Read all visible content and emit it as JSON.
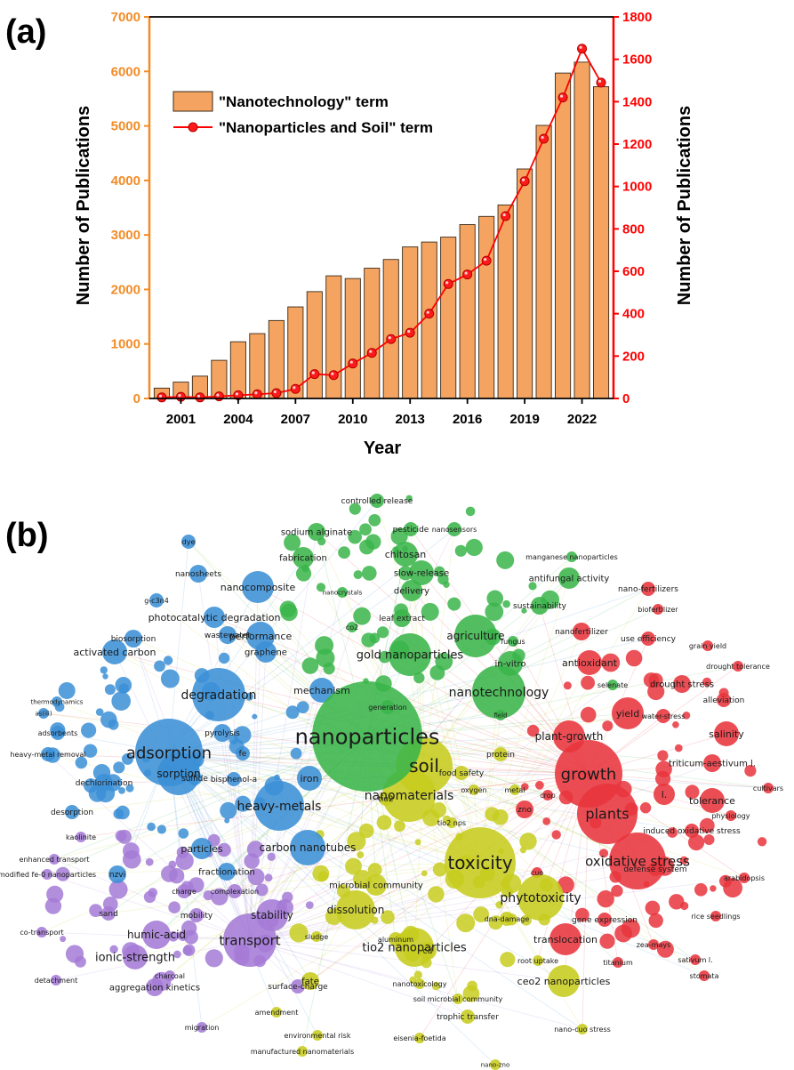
{
  "chart_data": [
    {
      "type": "bar+line",
      "panel_label": "(a)",
      "xlabel": "Year",
      "ylabel_left": "Number of Publications",
      "ylabel_right": "Number of Publications",
      "years": [
        2000,
        2001,
        2002,
        2003,
        2004,
        2005,
        2006,
        2007,
        2008,
        2009,
        2010,
        2011,
        2012,
        2013,
        2014,
        2015,
        2016,
        2017,
        2018,
        2019,
        2020,
        2021,
        2022,
        2023
      ],
      "x_ticks": [
        "2001",
        "2004",
        "2007",
        "2010",
        "2013",
        "2016",
        "2019",
        "2022"
      ],
      "left_axis": {
        "ticks": [
          0,
          1000,
          2000,
          3000,
          4000,
          5000,
          6000,
          7000
        ],
        "ylim": [
          0,
          7000
        ],
        "color": "#f28c28"
      },
      "right_axis": {
        "ticks": [
          0,
          200,
          400,
          600,
          800,
          1000,
          1200,
          1400,
          1600,
          1800
        ],
        "ylim": [
          0,
          1800
        ],
        "color": "#ff0000"
      },
      "series": [
        {
          "name": "\"Nanotechnology\" term",
          "kind": "bar",
          "axis": "left",
          "color": "#f4a460",
          "values": [
            190,
            300,
            410,
            700,
            1040,
            1190,
            1430,
            1680,
            1960,
            2250,
            2200,
            2390,
            2550,
            2780,
            2870,
            2960,
            3190,
            3340,
            3550,
            4210,
            5010,
            5970,
            6170,
            5720
          ]
        },
        {
          "name": "\"Nanoparticles and Soil\" term",
          "kind": "line",
          "axis": "right",
          "color": "#ff0000",
          "values": [
            5,
            8,
            5,
            10,
            15,
            20,
            25,
            45,
            115,
            110,
            165,
            215,
            280,
            310,
            400,
            540,
            585,
            650,
            860,
            1025,
            1225,
            1420,
            1650,
            1490
          ]
        }
      ]
    },
    {
      "type": "network",
      "panel_label": "(b)",
      "clusters": {
        "blue": "#3b8fd6",
        "green": "#3ab54a",
        "red": "#e8343c",
        "yellow": "#c7cc1e",
        "purple": "#a57bd6"
      },
      "terms": [
        {
          "text": "nanoparticles",
          "cluster": "green"
        },
        {
          "text": "soil",
          "cluster": "yellow"
        },
        {
          "text": "toxicity",
          "cluster": "yellow"
        },
        {
          "text": "nanomaterials",
          "cluster": "yellow"
        },
        {
          "text": "adsorption",
          "cluster": "blue"
        },
        {
          "text": "growth",
          "cluster": "red"
        },
        {
          "text": "plants",
          "cluster": "red"
        },
        {
          "text": "oxidative stress",
          "cluster": "red"
        },
        {
          "text": "transport",
          "cluster": "purple"
        },
        {
          "text": "heavy-metals",
          "cluster": "blue"
        },
        {
          "text": "degradation",
          "cluster": "blue"
        },
        {
          "text": "nanotechnology",
          "cluster": "green"
        },
        {
          "text": "gold nanoparticles",
          "cluster": "green"
        },
        {
          "text": "phytotoxicity",
          "cluster": "yellow"
        },
        {
          "text": "sorption",
          "cluster": "blue"
        },
        {
          "text": "tio2 nanoparticles",
          "cluster": "yellow"
        },
        {
          "text": "carbon nanotubes",
          "cluster": "blue"
        },
        {
          "text": "agriculture",
          "cluster": "green"
        },
        {
          "text": "plant-growth",
          "cluster": "red"
        },
        {
          "text": "dissolution",
          "cluster": "yellow"
        },
        {
          "text": "stability",
          "cluster": "purple"
        },
        {
          "text": "humic-acid",
          "cluster": "purple"
        },
        {
          "text": "ionic-strength",
          "cluster": "purple"
        },
        {
          "text": "ceo2 nanoparticles",
          "cluster": "yellow"
        },
        {
          "text": "translocation",
          "cluster": "red"
        },
        {
          "text": "yield",
          "cluster": "red"
        },
        {
          "text": "tolerance",
          "cluster": "red"
        },
        {
          "text": "salinity",
          "cluster": "red"
        },
        {
          "text": "l.",
          "cluster": "red"
        },
        {
          "text": "performance",
          "cluster": "blue"
        },
        {
          "text": "nanocomposite",
          "cluster": "blue"
        },
        {
          "text": "chitosan",
          "cluster": "green"
        },
        {
          "text": "fabrication",
          "cluster": "green"
        },
        {
          "text": "slow-release",
          "cluster": "green"
        },
        {
          "text": "delivery",
          "cluster": "green"
        },
        {
          "text": "sodium alginate",
          "cluster": "green"
        },
        {
          "text": "pesticide",
          "cluster": "green"
        },
        {
          "text": "nanosensors",
          "cluster": "green"
        },
        {
          "text": "controlled release",
          "cluster": "green"
        },
        {
          "text": "antifungal activity",
          "cluster": "green"
        },
        {
          "text": "manganese nanoparticles",
          "cluster": "green"
        },
        {
          "text": "sustainability",
          "cluster": "green"
        },
        {
          "text": "leaf extract",
          "cluster": "green"
        },
        {
          "text": "in-vitro",
          "cluster": "green"
        },
        {
          "text": "antioxidant",
          "cluster": "red"
        },
        {
          "text": "nanofertilizer",
          "cluster": "red"
        },
        {
          "text": "nano-fertilizers",
          "cluster": "red"
        },
        {
          "text": "biofertilizer",
          "cluster": "red"
        },
        {
          "text": "use efficiency",
          "cluster": "red"
        },
        {
          "text": "grain yield",
          "cluster": "red"
        },
        {
          "text": "drought tolerance",
          "cluster": "red"
        },
        {
          "text": "drought stress",
          "cluster": "red"
        },
        {
          "text": "alleviation",
          "cluster": "red"
        },
        {
          "text": "water-stress",
          "cluster": "red"
        },
        {
          "text": "triticum-aestivum l.",
          "cluster": "red"
        },
        {
          "text": "cultivars",
          "cluster": "red"
        },
        {
          "text": "physiology",
          "cluster": "red"
        },
        {
          "text": "induced oxidative stress",
          "cluster": "red"
        },
        {
          "text": "defense system",
          "cluster": "red"
        },
        {
          "text": "arabidopsis",
          "cluster": "red"
        },
        {
          "text": "rice seedlings",
          "cluster": "red"
        },
        {
          "text": "gene expression",
          "cluster": "red"
        },
        {
          "text": "zea-mays",
          "cluster": "red"
        },
        {
          "text": "sativum l.",
          "cluster": "red"
        },
        {
          "text": "titanium",
          "cluster": "red"
        },
        {
          "text": "stomata",
          "cluster": "red"
        },
        {
          "text": "root uptake",
          "cluster": "yellow"
        },
        {
          "text": "dna-damage",
          "cluster": "yellow"
        },
        {
          "text": "zno",
          "cluster": "red"
        },
        {
          "text": "cuo",
          "cluster": "red"
        },
        {
          "text": "crop",
          "cluster": "red"
        },
        {
          "text": "oxygen",
          "cluster": "yellow"
        },
        {
          "text": "metal",
          "cluster": "yellow"
        },
        {
          "text": "protein",
          "cluster": "yellow"
        },
        {
          "text": "food safety",
          "cluster": "yellow"
        },
        {
          "text": "tio2 nps",
          "cluster": "yellow"
        },
        {
          "text": "tio2",
          "cluster": "yellow"
        },
        {
          "text": "field",
          "cluster": "green"
        },
        {
          "text": "selenate",
          "cluster": "green"
        },
        {
          "text": "fungus",
          "cluster": "green"
        },
        {
          "text": "generation",
          "cluster": "green"
        },
        {
          "text": "co2",
          "cluster": "green"
        },
        {
          "text": "nanocrystals",
          "cluster": "green"
        },
        {
          "text": "mechanism",
          "cluster": "blue"
        },
        {
          "text": "graphene",
          "cluster": "blue"
        },
        {
          "text": "wastewater",
          "cluster": "blue"
        },
        {
          "text": "activated carbon",
          "cluster": "blue"
        },
        {
          "text": "biosorption",
          "cluster": "blue"
        },
        {
          "text": "photocatalytic degradation",
          "cluster": "blue"
        },
        {
          "text": "g-c3n4",
          "cluster": "blue"
        },
        {
          "text": "nanosheets",
          "cluster": "blue"
        },
        {
          "text": "dye",
          "cluster": "blue"
        },
        {
          "text": "thermodynamics",
          "cluster": "blue"
        },
        {
          "text": "as(iii)",
          "cluster": "blue"
        },
        {
          "text": "adsorbents",
          "cluster": "blue"
        },
        {
          "text": "pyrolysis",
          "cluster": "blue"
        },
        {
          "text": "fe",
          "cluster": "blue"
        },
        {
          "text": "heavy-metal removal",
          "cluster": "blue"
        },
        {
          "text": "sulfide",
          "cluster": "blue"
        },
        {
          "text": "bisphenol-a",
          "cluster": "blue"
        },
        {
          "text": "iron",
          "cluster": "blue"
        },
        {
          "text": "dechlorination",
          "cluster": "blue"
        },
        {
          "text": "desorption",
          "cluster": "blue"
        },
        {
          "text": "kaolinite",
          "cluster": "purple"
        },
        {
          "text": "enhanced transport",
          "cluster": "purple"
        },
        {
          "text": "modified fe-0 nanoparticles",
          "cluster": "purple"
        },
        {
          "text": "nzvi",
          "cluster": "blue"
        },
        {
          "text": "particles",
          "cluster": "blue"
        },
        {
          "text": "fractionation",
          "cluster": "blue"
        },
        {
          "text": "charge",
          "cluster": "purple"
        },
        {
          "text": "complexation",
          "cluster": "purple"
        },
        {
          "text": "sand",
          "cluster": "purple"
        },
        {
          "text": "mobility",
          "cluster": "purple"
        },
        {
          "text": "co-transport",
          "cluster": "purple"
        },
        {
          "text": "microbial community",
          "cluster": "yellow"
        },
        {
          "text": "aluminum",
          "cluster": "yellow"
        },
        {
          "text": "cd",
          "cluster": "yellow"
        },
        {
          "text": "sludge",
          "cluster": "yellow"
        },
        {
          "text": "charcoal",
          "cluster": "purple"
        },
        {
          "text": "fate",
          "cluster": "yellow"
        },
        {
          "text": "detachment",
          "cluster": "purple"
        },
        {
          "text": "aggregation kinetics",
          "cluster": "purple"
        },
        {
          "text": "surface-charge",
          "cluster": "purple"
        },
        {
          "text": "nanotoxicology",
          "cluster": "yellow"
        },
        {
          "text": "soil microbial community",
          "cluster": "yellow"
        },
        {
          "text": "trophic transfer",
          "cluster": "yellow"
        },
        {
          "text": "amendment",
          "cluster": "yellow"
        },
        {
          "text": "migration",
          "cluster": "purple"
        },
        {
          "text": "environmental risk",
          "cluster": "yellow"
        },
        {
          "text": "eisenia-foetida",
          "cluster": "yellow"
        },
        {
          "text": "nano-cuo stress",
          "cluster": "yellow"
        },
        {
          "text": "manufactured nanomaterials",
          "cluster": "yellow"
        },
        {
          "text": "nano-zno",
          "cluster": "yellow"
        }
      ]
    }
  ]
}
